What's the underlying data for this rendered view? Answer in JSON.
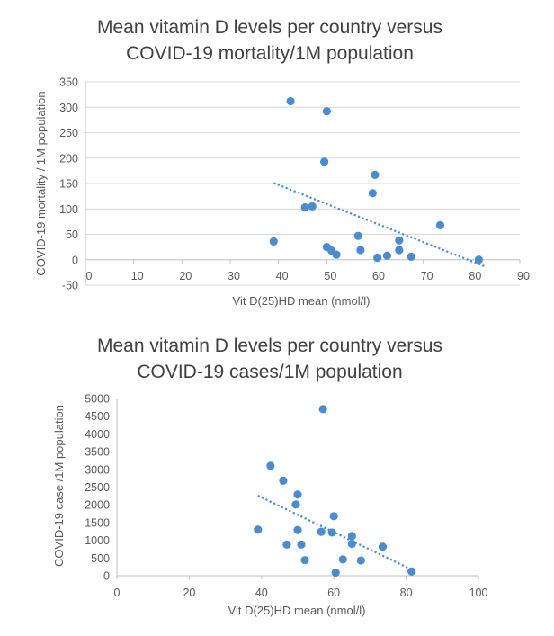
{
  "colors": {
    "marker": "#4a8ccf",
    "trendline": "#4a8ccf",
    "gridline": "#d9d9d9",
    "axis": "#bfbfbf",
    "text": "#595959",
    "title": "#404040"
  },
  "chart_data": [
    {
      "type": "scatter",
      "title_lines": [
        "Mean vitamin D  levels per country versus",
        "COVID-19 mortality/1M population"
      ],
      "xlabel": "Vit D(25)HD mean (nmol/l)",
      "ylabel": "COVID-19 mortality / 1M population",
      "xlim": [
        0,
        90
      ],
      "ylim": [
        -50,
        350
      ],
      "xticks": [
        0,
        10,
        20,
        30,
        40,
        50,
        60,
        70,
        80,
        90
      ],
      "yticks": [
        -50,
        0,
        50,
        100,
        150,
        200,
        250,
        300,
        350
      ],
      "horizontal_gridlines": true,
      "legend": "none",
      "points": [
        [
          42.5,
          312
        ],
        [
          50.0,
          292
        ],
        [
          49.5,
          193
        ],
        [
          60.0,
          167
        ],
        [
          59.5,
          131
        ],
        [
          47.0,
          105
        ],
        [
          45.5,
          103
        ],
        [
          73.5,
          68
        ],
        [
          39.0,
          36
        ],
        [
          56.5,
          47
        ],
        [
          65.0,
          38
        ],
        [
          57.0,
          19
        ],
        [
          65.0,
          19
        ],
        [
          50.0,
          25
        ],
        [
          51.0,
          18
        ],
        [
          52.0,
          10
        ],
        [
          62.5,
          8
        ],
        [
          60.5,
          4
        ],
        [
          67.5,
          6
        ],
        [
          81.5,
          0
        ]
      ],
      "trendline": {
        "style": "dotted-linear",
        "x": [
          39,
          83
        ],
        "y": [
          151,
          -14
        ]
      }
    },
    {
      "type": "scatter",
      "title_lines": [
        "Mean vitamin D  levels per country versus",
        "COVID-19 cases/1M population"
      ],
      "xlabel": "Vit D(25)HD mean (nmol/l)",
      "ylabel": "COVID-19 case /1M population",
      "xlim": [
        0,
        100
      ],
      "ylim": [
        0,
        5000
      ],
      "xticks": [
        0,
        20,
        40,
        60,
        80,
        100
      ],
      "yticks": [
        0,
        500,
        1000,
        1500,
        2000,
        2500,
        3000,
        3500,
        4000,
        4500,
        5000
      ],
      "horizontal_gridlines": false,
      "legend": "none",
      "points": [
        [
          57.0,
          4700
        ],
        [
          42.5,
          3100
        ],
        [
          46.0,
          2680
        ],
        [
          50.0,
          2290
        ],
        [
          49.5,
          2010
        ],
        [
          60.0,
          1680
        ],
        [
          39.0,
          1300
        ],
        [
          50.0,
          1290
        ],
        [
          56.5,
          1240
        ],
        [
          59.5,
          1220
        ],
        [
          65.0,
          1120
        ],
        [
          65.0,
          900
        ],
        [
          47.0,
          880
        ],
        [
          51.0,
          880
        ],
        [
          73.5,
          820
        ],
        [
          52.0,
          440
        ],
        [
          62.5,
          460
        ],
        [
          67.5,
          430
        ],
        [
          60.5,
          90
        ],
        [
          81.5,
          120
        ]
      ],
      "trendline": {
        "style": "dotted-linear",
        "x": [
          39,
          83
        ],
        "y": [
          2260,
          100
        ]
      }
    }
  ]
}
